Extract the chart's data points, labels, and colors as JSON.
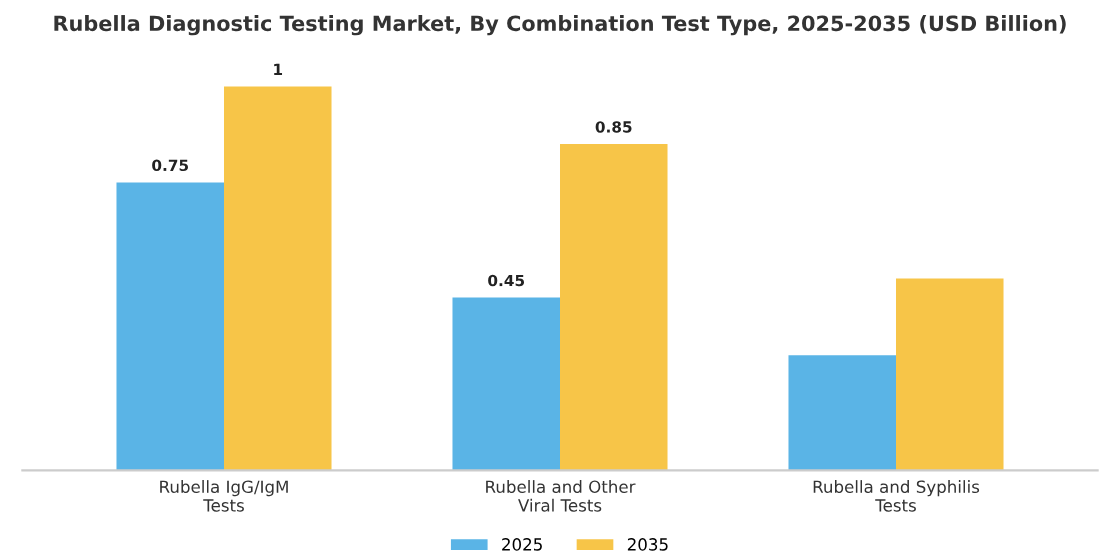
{
  "chart_data": {
    "type": "bar",
    "title": "Rubella Diagnostic Testing Market, By Combination Test Type, 2025-2035 (USD Billion)",
    "categories": [
      "Rubella IgG/IgM\nTests",
      "Rubella and Other\nViral Tests",
      "Rubella and Syphilis\nTests"
    ],
    "series": [
      {
        "name": "2025",
        "color": "#5ab4e6",
        "values": [
          0.75,
          0.45,
          0.3
        ],
        "value_labels": [
          "0.75",
          "0.45",
          null
        ]
      },
      {
        "name": "2035",
        "color": "#f7c548",
        "values": [
          1,
          0.85,
          0.5
        ],
        "value_labels": [
          "1",
          "0.85",
          null
        ]
      }
    ],
    "tick_labels": "x",
    "grid": false,
    "legend": "bottom"
  }
}
